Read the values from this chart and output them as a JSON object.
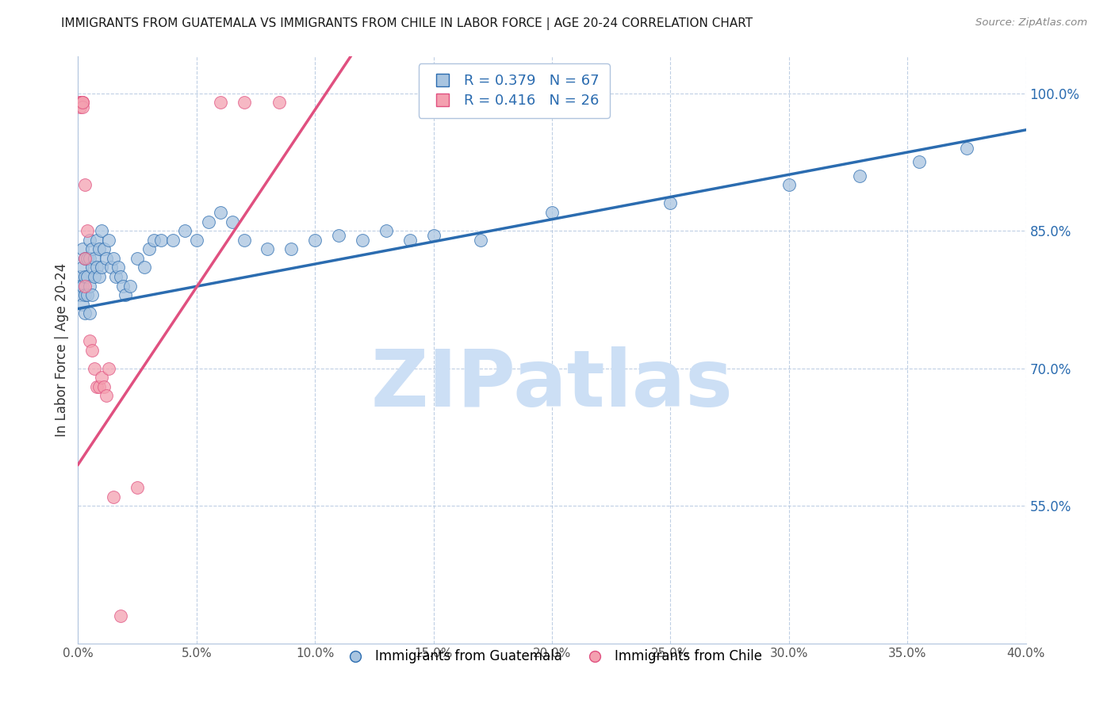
{
  "title": "IMMIGRANTS FROM GUATEMALA VS IMMIGRANTS FROM CHILE IN LABOR FORCE | AGE 20-24 CORRELATION CHART",
  "source": "Source: ZipAtlas.com",
  "ylabel": "In Labor Force | Age 20-24",
  "xlim": [
    0.0,
    0.4
  ],
  "ylim": [
    0.4,
    1.04
  ],
  "xticks": [
    0.0,
    0.05,
    0.1,
    0.15,
    0.2,
    0.25,
    0.3,
    0.35,
    0.4
  ],
  "ytick_positions": [
    0.55,
    0.7,
    0.85,
    1.0
  ],
  "ytick_labels": [
    "55.0%",
    "70.0%",
    "85.0%",
    "100.0%"
  ],
  "guatemala_R": 0.379,
  "guatemala_N": 67,
  "chile_R": 0.416,
  "chile_N": 26,
  "guatemala_color": "#a8c4e0",
  "chile_color": "#f4a0b0",
  "guatemala_line_color": "#2b6cb0",
  "chile_line_color": "#e05080",
  "watermark": "ZIPatlas",
  "watermark_color": "#ccdff5",
  "guatemala_x": [
    0.001,
    0.001,
    0.001,
    0.002,
    0.002,
    0.002,
    0.002,
    0.003,
    0.003,
    0.003,
    0.003,
    0.004,
    0.004,
    0.004,
    0.005,
    0.005,
    0.005,
    0.005,
    0.006,
    0.006,
    0.006,
    0.007,
    0.007,
    0.008,
    0.008,
    0.009,
    0.009,
    0.01,
    0.01,
    0.011,
    0.012,
    0.013,
    0.014,
    0.015,
    0.016,
    0.017,
    0.018,
    0.019,
    0.02,
    0.022,
    0.025,
    0.028,
    0.03,
    0.032,
    0.035,
    0.04,
    0.045,
    0.05,
    0.055,
    0.06,
    0.065,
    0.07,
    0.08,
    0.09,
    0.1,
    0.11,
    0.12,
    0.13,
    0.14,
    0.15,
    0.17,
    0.2,
    0.25,
    0.3,
    0.33,
    0.355,
    0.375
  ],
  "guatemala_y": [
    0.8,
    0.79,
    0.78,
    0.83,
    0.81,
    0.79,
    0.77,
    0.82,
    0.8,
    0.78,
    0.76,
    0.82,
    0.8,
    0.78,
    0.84,
    0.82,
    0.79,
    0.76,
    0.83,
    0.81,
    0.78,
    0.82,
    0.8,
    0.84,
    0.81,
    0.83,
    0.8,
    0.85,
    0.81,
    0.83,
    0.82,
    0.84,
    0.81,
    0.82,
    0.8,
    0.81,
    0.8,
    0.79,
    0.78,
    0.79,
    0.82,
    0.81,
    0.83,
    0.84,
    0.84,
    0.84,
    0.85,
    0.84,
    0.86,
    0.87,
    0.86,
    0.84,
    0.83,
    0.83,
    0.84,
    0.845,
    0.84,
    0.85,
    0.84,
    0.845,
    0.84,
    0.87,
    0.88,
    0.9,
    0.91,
    0.925,
    0.94
  ],
  "chile_x": [
    0.001,
    0.001,
    0.001,
    0.002,
    0.002,
    0.002,
    0.002,
    0.003,
    0.003,
    0.003,
    0.004,
    0.005,
    0.006,
    0.007,
    0.008,
    0.009,
    0.01,
    0.011,
    0.012,
    0.013,
    0.015,
    0.018,
    0.025,
    0.06,
    0.07,
    0.085
  ],
  "chile_y": [
    0.99,
    0.99,
    0.985,
    0.99,
    0.99,
    0.985,
    0.99,
    0.82,
    0.79,
    0.9,
    0.85,
    0.73,
    0.72,
    0.7,
    0.68,
    0.68,
    0.69,
    0.68,
    0.67,
    0.7,
    0.56,
    0.43,
    0.57,
    0.99,
    0.99,
    0.99
  ],
  "blue_trend_x": [
    0.0,
    0.4
  ],
  "blue_trend_y": [
    0.765,
    0.96
  ],
  "pink_trend_x": [
    0.0,
    0.115
  ],
  "pink_trend_y": [
    0.595,
    1.04
  ]
}
